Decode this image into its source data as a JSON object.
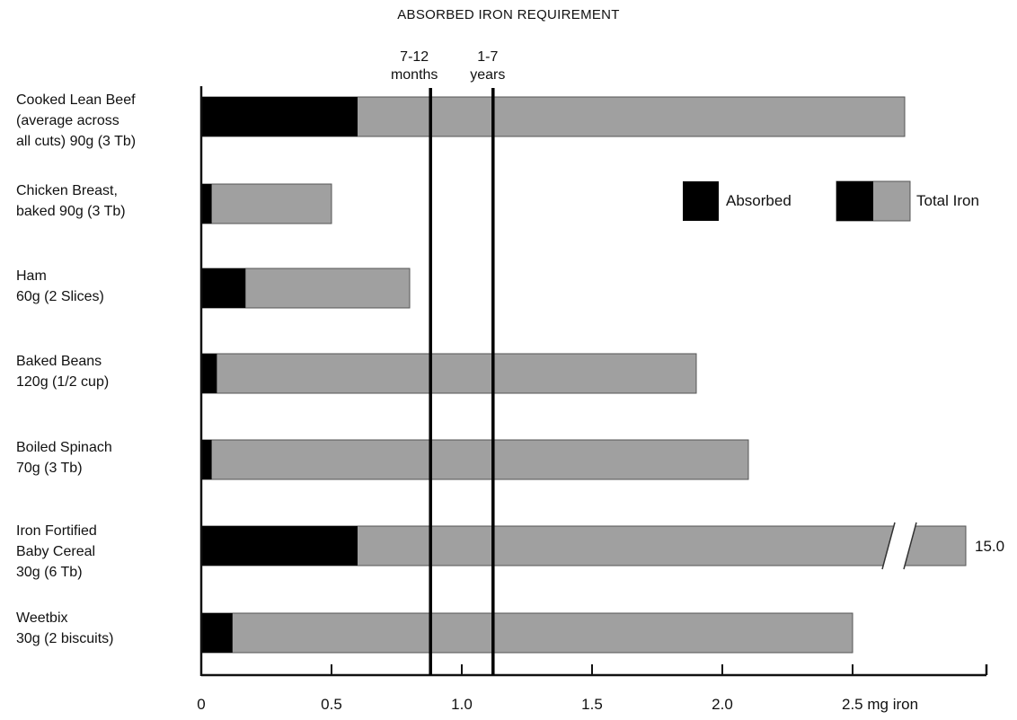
{
  "chart_data": {
    "type": "bar",
    "title": "ABSORBED IRON REQUIREMENT",
    "xlabel": "mg iron",
    "xlim": [
      0,
      3.0
    ],
    "x_ticks": [
      0,
      0.5,
      1.0,
      1.5,
      2.0,
      2.5
    ],
    "x_tick_labels": [
      "0",
      "0.5",
      "1.0",
      "1.5",
      "2.0",
      "2.5 mg iron"
    ],
    "categories": [
      "Cooked Lean Beef\n(average across\nall cuts) 90g (3 Tb)",
      "Chicken Breast,\nbaked 90g (3 Tb)",
      "Ham\n60g (2 Slices)",
      "Baked Beans\n120g (1/2 cup)",
      "Boiled Spinach\n70g (3 Tb)",
      "Iron Fortified\nBaby Cereal\n30g (6 Tb)",
      "Weetbix\n30g (2 biscuits)"
    ],
    "series": [
      {
        "name": "Absorbed",
        "values": [
          0.6,
          0.04,
          0.17,
          0.06,
          0.04,
          0.6,
          0.12
        ]
      },
      {
        "name": "Total Iron",
        "values": [
          2.7,
          0.5,
          0.8,
          1.9,
          2.1,
          15.0,
          2.5
        ]
      }
    ],
    "axis_break": {
      "category_index": 5,
      "label": "15.0"
    },
    "reference_lines": [
      {
        "label_line1": "7-12",
        "label_line2": "months",
        "x": 0.88
      },
      {
        "label_line1": "1-7",
        "label_line2": "years",
        "x": 1.12
      }
    ],
    "legend": {
      "placement": "right",
      "absorbed_label": "Absorbed",
      "total_label": "Total Iron"
    },
    "colors": {
      "absorbed": "#000000",
      "total": "#a0a0a0",
      "axis": "#111111"
    }
  }
}
